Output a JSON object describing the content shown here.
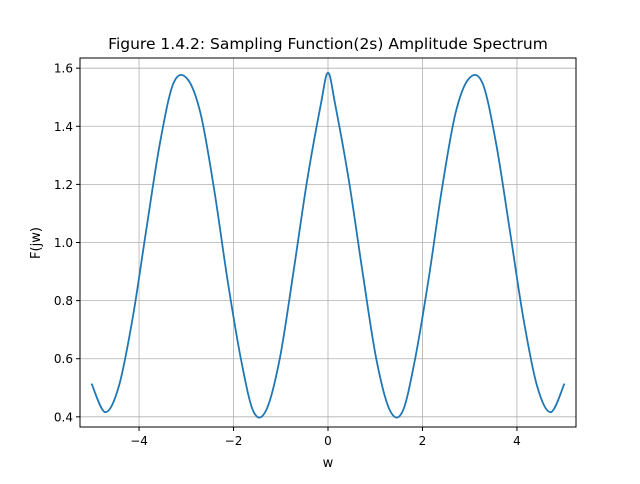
{
  "chart_data": {
    "type": "line",
    "title": "Figure 1.4.2: Sampling Function(2s) Amplitude Spectrum",
    "xlabel": "w",
    "ylabel": "F(jw)",
    "xlim": [
      -5.25,
      5.25
    ],
    "ylim": [
      0.365,
      1.635
    ],
    "xticks": [
      -4,
      -2,
      0,
      2,
      4
    ],
    "xtick_labels": [
      "−4",
      "−2",
      "0",
      "2",
      "4"
    ],
    "yticks": [
      0.4,
      0.6,
      0.8,
      1.0,
      1.2,
      1.4,
      1.6
    ],
    "ytick_labels": [
      "0.4",
      "0.6",
      "0.8",
      "1.0",
      "1.2",
      "1.4",
      "1.6"
    ],
    "grid": true,
    "legend": "none",
    "line_color": "#1f77b4",
    "series": [
      {
        "x": [
          -5.0,
          -4.7124,
          -4.4248,
          -4.1372,
          -3.8496,
          -3.562,
          -3.2744,
          -2.9868,
          -2.6992,
          -2.4116,
          -2.124,
          -1.8364,
          -1.5708,
          -1.3052,
          -1.0176,
          -0.73,
          -0.4424,
          -0.1548,
          0.0,
          0.1548,
          0.4424,
          0.73,
          1.0176,
          1.3052,
          1.5708,
          1.8364,
          2.124,
          2.4116,
          2.6992,
          2.9868,
          3.2744,
          3.562,
          3.8496,
          4.1372,
          4.4248,
          4.7124,
          5.0
        ],
        "y": [
          0.512,
          0.416,
          0.507,
          0.738,
          1.041,
          1.338,
          1.547,
          1.565,
          1.445,
          1.184,
          0.868,
          0.593,
          0.416,
          0.424,
          0.603,
          0.9,
          1.213,
          1.473,
          1.584,
          1.473,
          1.213,
          0.9,
          0.603,
          0.424,
          0.416,
          0.593,
          0.868,
          1.184,
          1.445,
          1.565,
          1.547,
          1.338,
          1.041,
          0.738,
          0.507,
          0.416,
          0.512
        ]
      }
    ]
  }
}
